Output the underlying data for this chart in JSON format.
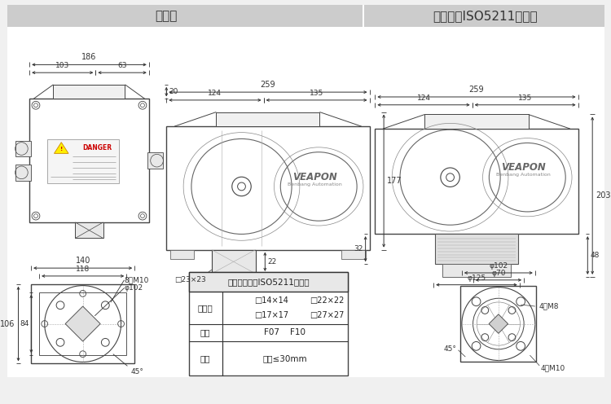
{
  "title_left": "标准式",
  "title_right": "直装式（ISO5211标准）",
  "header_bg": "#cccccc",
  "white_bg": "#ffffff",
  "line_color": "#444444",
  "dim_color": "#333333",
  "text_color": "#222222",
  "table_title": "直装式参数（ISO5211标准）",
  "table_row1_label": "内方心",
  "table_row1_val1": "□14×14",
  "table_row1_val2": "□22×22",
  "table_row1_val3": "□17×17",
  "table_row1_val4": "□27×27",
  "table_row2_label": "法兰",
  "table_row2_val": "F07    F10",
  "table_row3_label": "阀杆",
  "table_row3_val": "高度≤30mm",
  "label_phi102": "φ102",
  "label_phi70": "φ70",
  "label_phi125": "φ125",
  "label_8M10": "8－M10",
  "label_4M8": "4－M8",
  "label_4M10": "4－M10",
  "label_23x23": "□23×23",
  "label_45deg": "45°",
  "dim_186": "186",
  "dim_103": "103",
  "dim_63": "63",
  "dim_259a": "259",
  "dim_124a": "124",
  "dim_135a": "135",
  "dim_177": "177",
  "dim_259b": "259",
  "dim_124b": "124",
  "dim_135b": "135",
  "dim_203": "203",
  "dim_32": "32",
  "dim_48": "48",
  "dim_20": "20",
  "dim_22": "22",
  "dim_140": "140",
  "dim_118": "118",
  "dim_106": "106",
  "dim_84": "84"
}
